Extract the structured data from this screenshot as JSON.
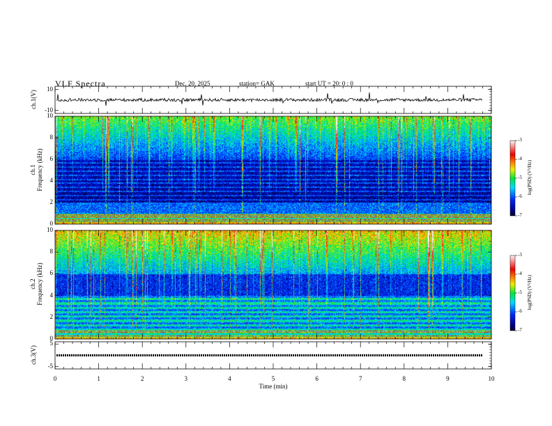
{
  "header": {
    "title": "VLF  Spectra",
    "date": "Dec. 20, 2025",
    "station": "station= GAK",
    "start": "start  UT  =    20: 0   : 0"
  },
  "colors": {
    "trace": "#000000",
    "background": "#ffffff"
  },
  "chart_data": [
    {
      "type": "line",
      "name": "ch1-waveform",
      "ylabel": "ch.1(V)",
      "ylim": [
        -13,
        13
      ],
      "yticks": [
        "10",
        "-10"
      ],
      "ytick_values": [
        10,
        -10
      ],
      "xlim": [
        0,
        10
      ],
      "mean_value": 0,
      "noise_amplitude": 1.5
    },
    {
      "type": "heatmap",
      "name": "ch1-spectrogram",
      "ylabel": "ch.1\nFrequency  (kHz)",
      "ylabel_lines": [
        "ch.1",
        "Frequency  (kHz)"
      ],
      "ylim": [
        0,
        10
      ],
      "yticks": [
        "0",
        "2",
        "4",
        "6",
        "8",
        "10"
      ],
      "ytick_values": [
        0,
        2,
        4,
        6,
        8,
        10
      ],
      "xlim": [
        0,
        10
      ],
      "colorbar": {
        "label": "log(PSD) (V²/Hz)",
        "range": [
          -7,
          -3
        ],
        "ticks": [
          "-3",
          "-4",
          "-5",
          "-6",
          "-7"
        ],
        "tick_values": [
          -3,
          -4,
          -5,
          -6,
          -7
        ]
      },
      "profile_log_psd": {
        "0-1kHz": -4.5,
        "1-2kHz": -5.8,
        "2-6kHz": -6.6,
        "6-8kHz": -5.5,
        "8-10kHz": -5.0
      }
    },
    {
      "type": "heatmap",
      "name": "ch2-spectrogram",
      "ylabel_lines": [
        "ch.2",
        "Frequency  (kHz)"
      ],
      "ylim": [
        0,
        10
      ],
      "yticks": [
        "0",
        "2",
        "4",
        "6",
        "8",
        "10"
      ],
      "ytick_values": [
        0,
        2,
        4,
        6,
        8,
        10
      ],
      "xlim": [
        0,
        10
      ],
      "colorbar": {
        "label": "log(PSD) (V²/Hz)",
        "range": [
          -7,
          -3
        ],
        "ticks": [
          "-3",
          "-4",
          "-5",
          "-6",
          "-7"
        ],
        "tick_values": [
          -3,
          -4,
          -5,
          -6,
          -7
        ]
      },
      "profile_log_psd": {
        "0-1kHz": -4.6,
        "1-4kHz": -5.9,
        "4-6kHz": -6.3,
        "6-8kHz": -5.2,
        "8-10kHz": -4.7
      }
    },
    {
      "type": "line",
      "name": "ch3-waveform",
      "ylabel": "ch.3(V)",
      "ylim": [
        -6,
        6
      ],
      "yticks": [
        "5",
        "-5"
      ],
      "ytick_values": [
        5,
        -5
      ],
      "xlim": [
        0,
        10
      ],
      "mean_value": 0
    }
  ],
  "xaxis": {
    "label": "Time  (min)",
    "ticks": [
      "0",
      "1",
      "2",
      "3",
      "4",
      "5",
      "6",
      "7",
      "8",
      "9",
      "10"
    ],
    "tick_values": [
      0,
      1,
      2,
      3,
      4,
      5,
      6,
      7,
      8,
      9,
      10
    ]
  }
}
